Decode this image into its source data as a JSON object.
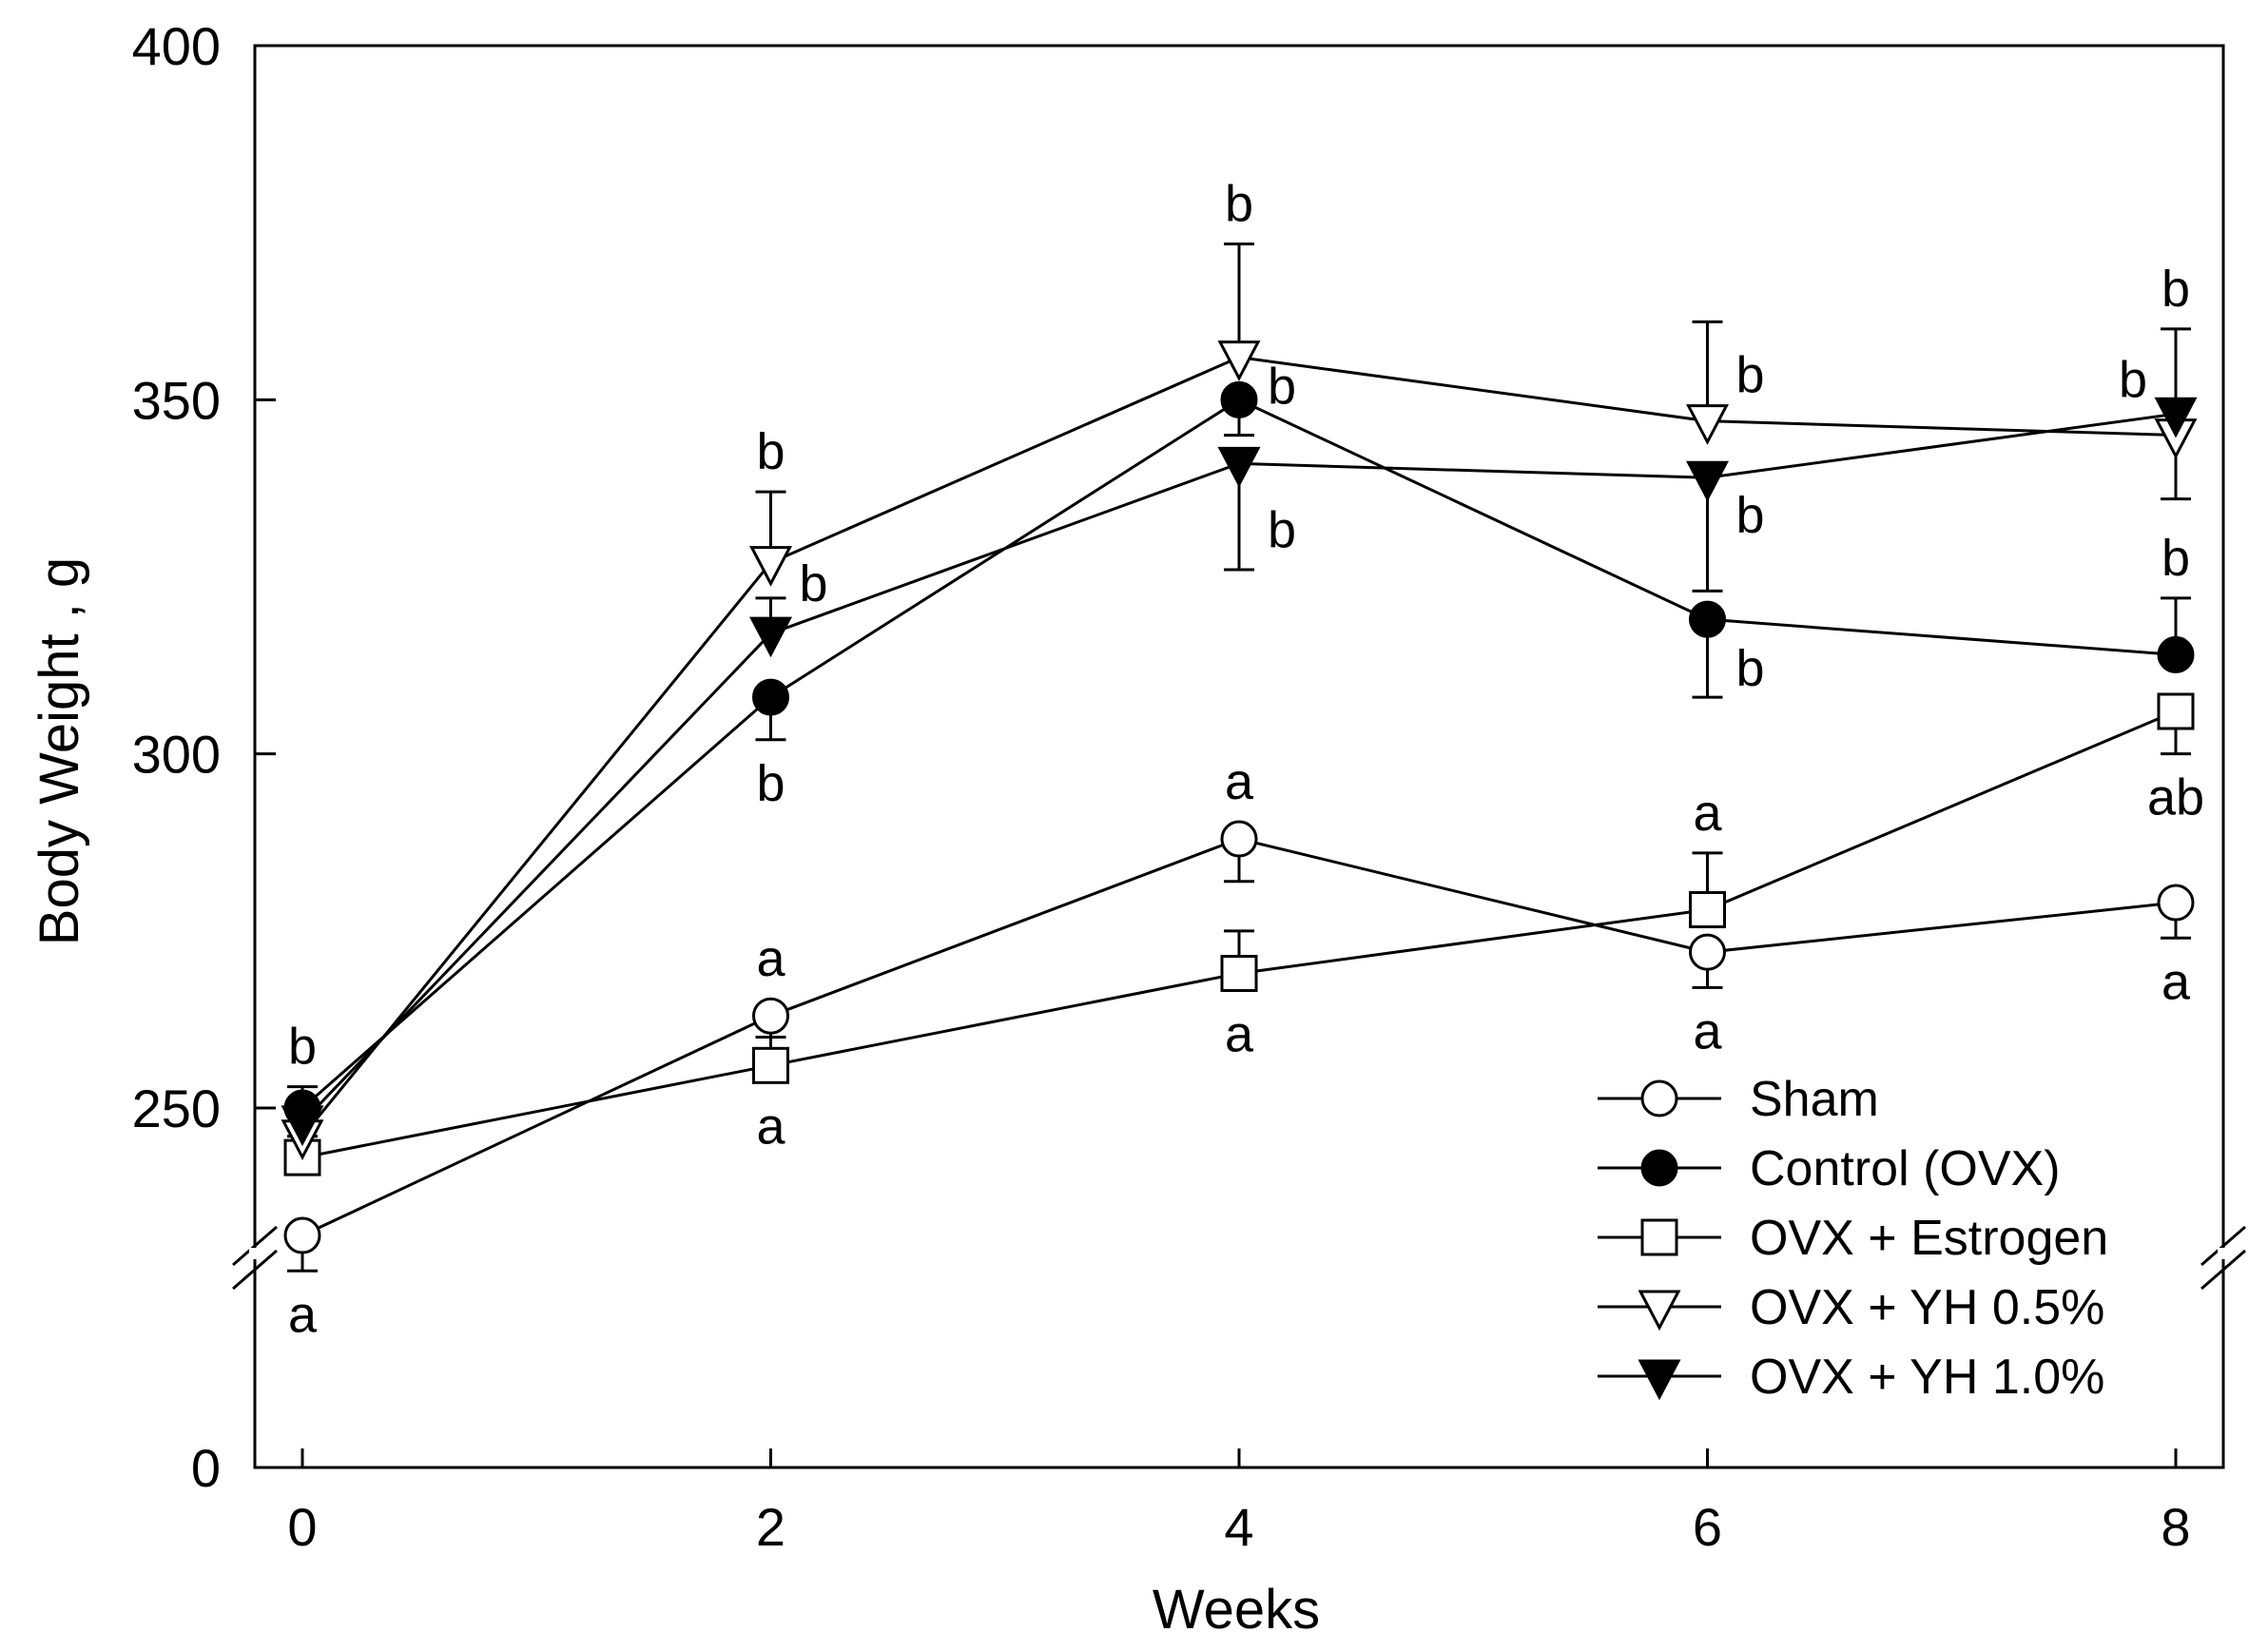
{
  "chart_data": {
    "type": "line",
    "title": "",
    "xlabel": "Weeks",
    "ylabel": "Body Weight , g",
    "x": [
      0,
      2,
      4,
      6,
      8
    ],
    "xticks": [
      "0",
      "2",
      "4",
      "6",
      "8"
    ],
    "yticks": [
      "0",
      "250",
      "300",
      "350",
      "400"
    ],
    "ylim": [
      0,
      400
    ],
    "y_axis_break": "between 0 and ~230 (segment 220–400 expanded)",
    "legend_position": "bottom-right",
    "grid": false,
    "series": [
      {
        "name": "Sham",
        "marker": "open-circle",
        "values": [
          232,
          263,
          288,
          272,
          279
        ],
        "error": [
          5,
          5,
          6,
          5,
          5
        ],
        "error_direction": "down",
        "sig_labels": [
          "a",
          "a",
          "a",
          "a",
          "a"
        ],
        "sig_position": [
          "below",
          "above",
          "above",
          "below",
          "below"
        ]
      },
      {
        "name": "Control (OVX)",
        "marker": "filled-circle",
        "values": [
          250,
          308,
          350,
          319,
          314
        ],
        "error": [
          3,
          6,
          5,
          11,
          8
        ],
        "error_direction": "mixed",
        "sig_labels": [
          "b",
          "b",
          "b",
          "b",
          "b"
        ],
        "sig_position": [
          "above",
          "below",
          "right",
          "right",
          "above"
        ]
      },
      {
        "name": "OVX + Estrogen",
        "marker": "open-square",
        "values": [
          243,
          256,
          269,
          278,
          306
        ],
        "error": [
          3,
          4,
          6,
          8,
          6
        ],
        "error_direction": "mixed",
        "sig_labels": [
          "",
          "a",
          "a",
          "a",
          "ab"
        ],
        "sig_position": [
          "",
          "below",
          "below",
          "above",
          "below"
        ]
      },
      {
        "name": "OVX + YH 0.5%",
        "marker": "open-triangle-down",
        "values": [
          246,
          327,
          356,
          347,
          345
        ],
        "error": [
          3,
          10,
          16,
          14,
          9
        ],
        "error_direction": "mixed",
        "sig_labels": [
          "",
          "b",
          "b",
          "b",
          "b"
        ],
        "sig_position": [
          "",
          "above",
          "above",
          "right",
          "left"
        ]
      },
      {
        "name": "OVX + YH 1.0%",
        "marker": "filled-triangle-down",
        "values": [
          248,
          317,
          341,
          339,
          348
        ],
        "error": [
          3,
          5,
          15,
          16,
          12
        ],
        "error_direction": "mixed",
        "sig_labels": [
          "",
          "b",
          "b",
          "b",
          "b"
        ],
        "sig_position": [
          "",
          "right",
          "right",
          "right",
          "above"
        ]
      }
    ]
  }
}
